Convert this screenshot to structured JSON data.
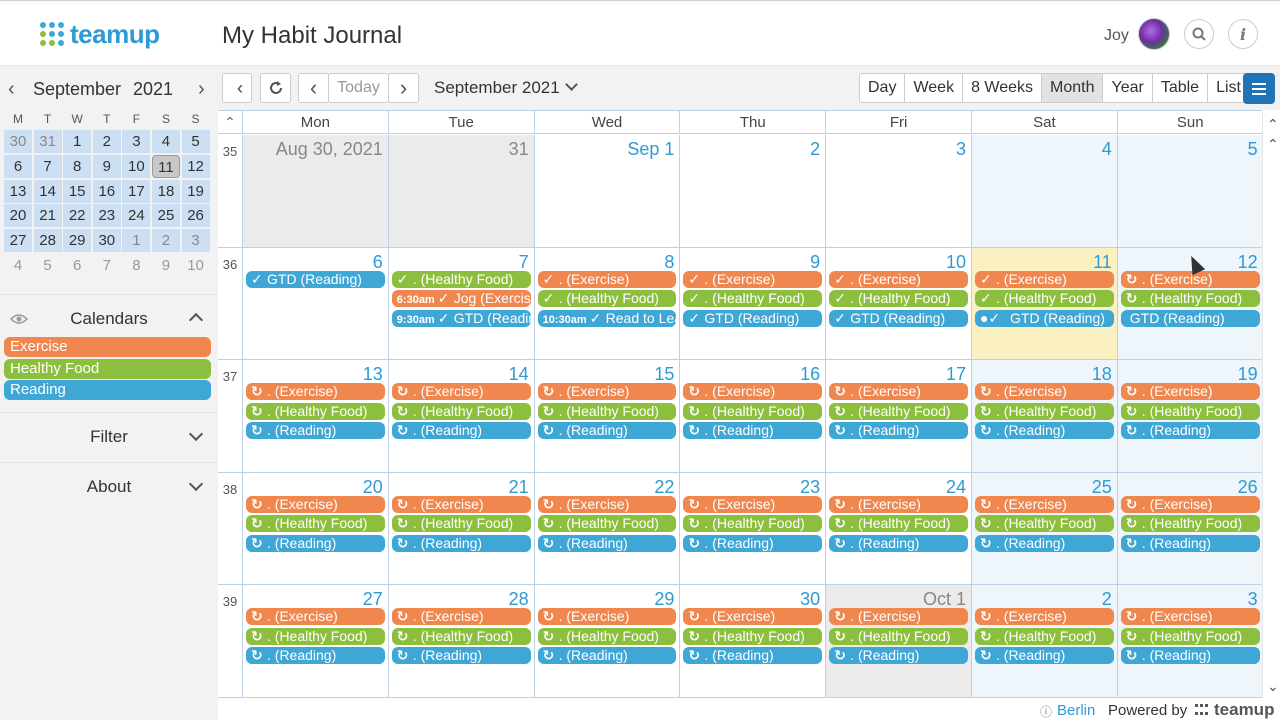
{
  "app": {
    "logo_text": "teamup",
    "title": "My Habit Journal",
    "user_name": "Joy"
  },
  "colors": {
    "exercise": "#f0874f",
    "healthy_food": "#8dbf3f",
    "reading": "#3ea7d6",
    "accent": "#2c9bd5",
    "menu": "#1f73b7"
  },
  "icons": {
    "search": "search-icon",
    "info": "info-icon",
    "prev": "chevron-left-icon",
    "next": "chevron-right-icon",
    "refresh": "refresh-icon",
    "collapse": "double-chevron-left-icon",
    "menu": "hamburger-icon",
    "eye": "eye-icon",
    "recurring": "repeat-icon",
    "done": "checkmark-icon",
    "comment": "comment-icon"
  },
  "minical": {
    "month": "September",
    "year": "2021",
    "dows": [
      "M",
      "T",
      "W",
      "T",
      "F",
      "S",
      "S"
    ],
    "weeks": [
      [
        "30",
        "31",
        "1",
        "2",
        "3",
        "4",
        "5"
      ],
      [
        "6",
        "7",
        "8",
        "9",
        "10",
        "11",
        "12"
      ],
      [
        "13",
        "14",
        "15",
        "16",
        "17",
        "18",
        "19"
      ],
      [
        "20",
        "21",
        "22",
        "23",
        "24",
        "25",
        "26"
      ],
      [
        "27",
        "28",
        "29",
        "30",
        "1",
        "2",
        "3"
      ],
      [
        "4",
        "5",
        "6",
        "7",
        "8",
        "9",
        "10"
      ]
    ],
    "selected": "11"
  },
  "sidebar": {
    "calendars_label": "Calendars",
    "calendars": [
      "Exercise",
      "Healthy Food",
      "Reading"
    ],
    "filter_label": "Filter",
    "about_label": "About"
  },
  "toolbar": {
    "today_label": "Today",
    "month_label": "September 2021",
    "views": [
      "Day",
      "Week",
      "8 Weeks",
      "Month",
      "Year",
      "Table",
      "List"
    ],
    "active_view": "Month"
  },
  "grid": {
    "dows": [
      "Mon",
      "Tue",
      "Wed",
      "Thu",
      "Fri",
      "Sat",
      "Sun"
    ],
    "weeks": [
      {
        "num": "35",
        "days": [
          "Aug 30, 2021",
          "31",
          "Sep 1",
          "2",
          "3",
          "4",
          "5"
        ]
      },
      {
        "num": "36",
        "days": [
          "6",
          "7",
          "8",
          "9",
          "10",
          "11",
          "12"
        ]
      },
      {
        "num": "37",
        "days": [
          "13",
          "14",
          "15",
          "16",
          "17",
          "18",
          "19"
        ]
      },
      {
        "num": "38",
        "days": [
          "20",
          "21",
          "22",
          "23",
          "24",
          "25",
          "26"
        ]
      },
      {
        "num": "39",
        "days": [
          "27",
          "28",
          "29",
          "30",
          "Oct 1",
          "2",
          "3"
        ]
      }
    ],
    "week36_events": [
      [
        {
          "icon": "✓",
          "text": "GTD (Reading)",
          "cal": "rd"
        }
      ],
      [
        {
          "icon": "✓",
          "text": ". (Healthy Food)",
          "cal": "hf"
        },
        {
          "time": "6:30am",
          "icon": "✓",
          "text": "Jog (Exercise)",
          "cal": "ex"
        },
        {
          "time": "9:30am",
          "icon": "✓",
          "text": "GTD (Reading)",
          "cal": "rd"
        }
      ],
      [
        {
          "icon": "✓",
          "text": ". (Exercise)",
          "cal": "ex"
        },
        {
          "icon": "✓",
          "text": ". (Healthy Food)",
          "cal": "hf"
        },
        {
          "time": "10:30am",
          "icon": "✓",
          "text": "Read to Learn",
          "cal": "rd"
        }
      ],
      [
        {
          "icon": "✓",
          "text": ". (Exercise)",
          "cal": "ex"
        },
        {
          "icon": "✓",
          "text": ". (Healthy Food)",
          "cal": "hf"
        },
        {
          "icon": "✓",
          "text": "GTD (Reading)",
          "cal": "rd"
        }
      ],
      [
        {
          "icon": "✓",
          "text": ". (Exercise)",
          "cal": "ex"
        },
        {
          "icon": "✓",
          "text": ". (Healthy Food)",
          "cal": "hf"
        },
        {
          "icon": "✓",
          "text": "GTD (Reading)",
          "cal": "rd"
        }
      ],
      [
        {
          "icon": "✓",
          "text": ". (Exercise)",
          "cal": "ex"
        },
        {
          "icon": "✓",
          "text": ". (Healthy Food)",
          "cal": "hf"
        },
        {
          "icon": "●✓",
          "text": "GTD (Reading)",
          "cal": "rd"
        }
      ],
      [
        {
          "icon": "↻",
          "text": ". (Exercise)",
          "cal": "ex"
        },
        {
          "icon": "↻",
          "text": ". (Healthy Food)",
          "cal": "hf"
        },
        {
          "icon": "",
          "text": "GTD (Reading)",
          "cal": "rd"
        }
      ]
    ],
    "recurring_events": [
      {
        "icon": "↻",
        "text": ". (Exercise)",
        "cal": "ex"
      },
      {
        "icon": "↻",
        "text": ". (Healthy Food)",
        "cal": "hf"
      },
      {
        "icon": "↻",
        "text": ". (Reading)",
        "cal": "rd"
      }
    ]
  },
  "footer": {
    "timezone": "Berlin",
    "powered_by": "Powered by",
    "brand": "teamup"
  }
}
